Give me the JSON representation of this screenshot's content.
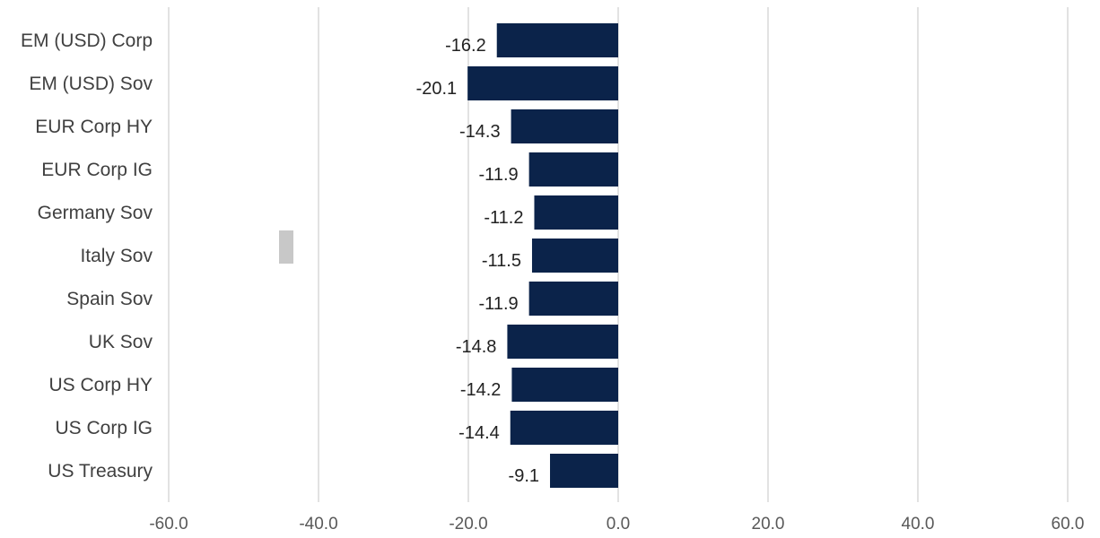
{
  "chart_data": {
    "type": "bar",
    "orientation": "horizontal",
    "categories": [
      "EM (USD) Corp",
      "EM (USD) Sov",
      "EUR Corp HY",
      "EUR Corp IG",
      "Germany Sov",
      "Italy Sov",
      "Spain Sov",
      "UK Sov",
      "US Corp HY",
      "US Corp IG",
      "US Treasury"
    ],
    "values": [
      -16.2,
      -20.1,
      -14.3,
      -11.9,
      -11.2,
      -11.5,
      -11.9,
      -14.8,
      -14.2,
      -14.4,
      -9.1
    ],
    "value_labels": [
      "-16.2",
      "-20.1",
      "-14.3",
      "-11.9",
      "-11.2",
      "-11.5",
      "-11.9",
      "-14.8",
      "-14.2",
      "-14.4",
      "-9.1"
    ],
    "x_ticks": [
      -60,
      -40,
      -20,
      0,
      20,
      40,
      60
    ],
    "x_tick_labels": [
      "-60.0",
      "-40.0",
      "-20.0",
      "0.0",
      "20.0",
      "40.0",
      "60.0"
    ],
    "xlim": [
      -60,
      60
    ],
    "title": "",
    "xlabel": "",
    "ylabel": "",
    "grid": "vertical",
    "legend": "none",
    "colors": {
      "bar": "#0b234a",
      "grid": "#d9d9d9",
      "category_text": "#404040",
      "tick_text": "#595959",
      "value_text": "#222222",
      "marker": "#c8c8c8"
    }
  }
}
